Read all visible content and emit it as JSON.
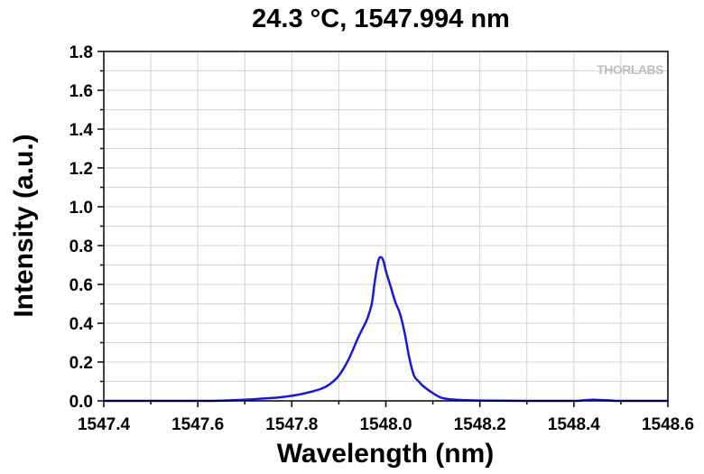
{
  "chart_data": {
    "type": "line",
    "title": "24.3 °C, 1547.994 nm",
    "xlabel": "Wavelength (nm)",
    "ylabel": "Intensity (a.u.)",
    "xlim": [
      1547.4,
      1548.6
    ],
    "ylim": [
      0.0,
      1.8
    ],
    "xticks": [
      "1547.4",
      "1547.6",
      "1547.8",
      "1548.0",
      "1548.2",
      "1548.4",
      "1548.6"
    ],
    "yticks": [
      "0.0",
      "0.2",
      "0.4",
      "0.6",
      "0.8",
      "1.0",
      "1.2",
      "1.4",
      "1.6",
      "1.8"
    ],
    "grid": true,
    "line_color": "#1a1ad6",
    "watermark": "THORLABS",
    "series": [
      {
        "x": [
          1547.4,
          1547.6,
          1547.66,
          1547.7,
          1547.74,
          1547.78,
          1547.82,
          1547.86,
          1547.88,
          1547.9,
          1547.92,
          1547.94,
          1547.95,
          1547.96,
          1547.97,
          1547.975,
          1547.98,
          1547.985,
          1547.99,
          1547.995,
          1548.0,
          1548.01,
          1548.02,
          1548.03,
          1548.04,
          1548.05,
          1548.06,
          1548.07,
          1548.08,
          1548.1,
          1548.12,
          1548.15,
          1548.2,
          1548.3,
          1548.4,
          1548.42,
          1548.44,
          1548.46,
          1548.48,
          1548.5,
          1548.6
        ],
        "y": [
          0.0,
          0.0,
          0.002,
          0.006,
          0.012,
          0.02,
          0.035,
          0.06,
          0.085,
          0.13,
          0.21,
          0.32,
          0.37,
          0.42,
          0.5,
          0.59,
          0.67,
          0.73,
          0.74,
          0.72,
          0.67,
          0.59,
          0.51,
          0.45,
          0.35,
          0.22,
          0.13,
          0.1,
          0.075,
          0.04,
          0.015,
          0.006,
          0.002,
          0.0,
          0.0,
          0.003,
          0.006,
          0.004,
          0.002,
          0.0,
          0.0
        ]
      }
    ]
  }
}
